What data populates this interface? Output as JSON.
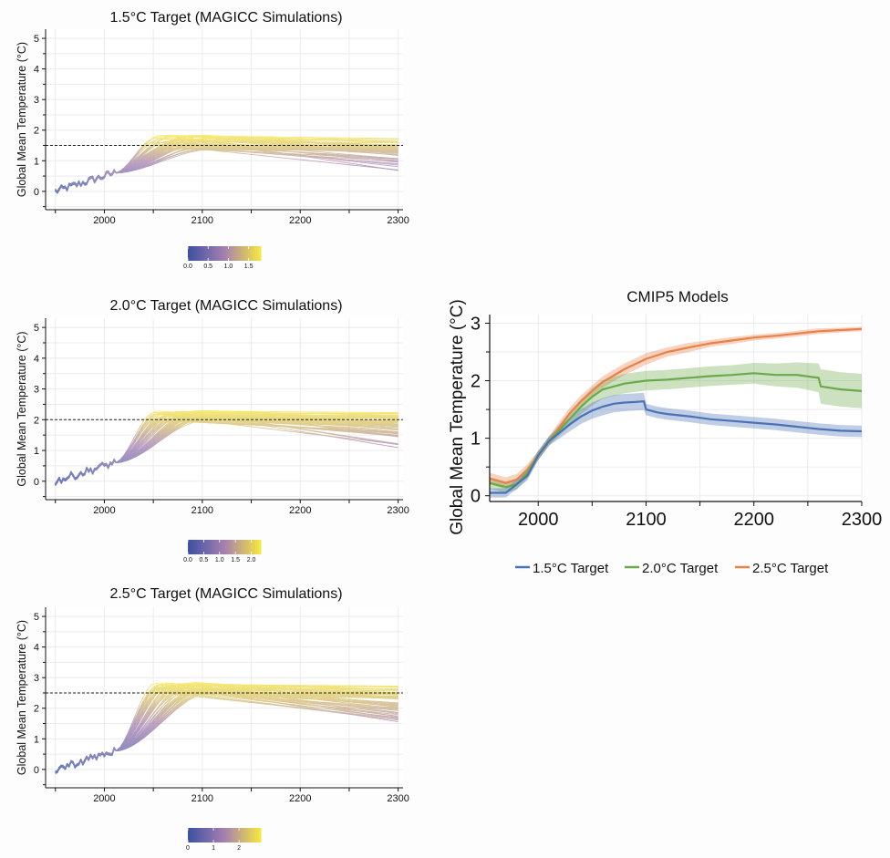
{
  "magicc_panels": [
    {
      "title": "1.5°C Target (MAGICC Simulations)",
      "ylabel": "Global Mean Temperature (°C)",
      "target": 1.5,
      "peak_range": [
        1.35,
        1.85
      ],
      "end_range": [
        0.6,
        1.75
      ],
      "colorbar_ticks": [
        "0.0",
        "0.5",
        "1.0",
        "1.5"
      ],
      "colorbar_max": 1.8
    },
    {
      "title": "2.0°C Target (MAGICC Simulations)",
      "ylabel": "Global Mean Temperature (°C)",
      "target": 2.0,
      "peak_range": [
        1.95,
        2.3
      ],
      "end_range": [
        1.05,
        2.25
      ],
      "colorbar_ticks": [
        "0.0",
        "0.5",
        "1.0",
        "1.5",
        "2.0"
      ],
      "colorbar_max": 2.3
    },
    {
      "title": "2.5°C Target (MAGICC Simulations)",
      "ylabel": "Global Mean Temperature (°C)",
      "target": 2.5,
      "peak_range": [
        2.45,
        2.85
      ],
      "end_range": [
        1.5,
        2.75
      ],
      "colorbar_ticks": [
        "0",
        "1",
        "2"
      ],
      "colorbar_max": 2.85
    }
  ],
  "colors": {
    "low": "#3d52a1",
    "mid": "#a57fb0",
    "high": "#f4e542",
    "blue": "#4a72b5",
    "green": "#6aaa4a",
    "orange": "#e8814a"
  },
  "chart_data": [
    {
      "type": "line",
      "title": "1.5°C Target (MAGICC Simulations)",
      "xlabel": "",
      "ylabel": "Global Mean Temperature (°C)",
      "x_ticks": [
        "2000",
        "2100",
        "2200",
        "2300"
      ],
      "y_ticks": [
        "0",
        "1",
        "2",
        "3",
        "4",
        "5"
      ],
      "xlim": [
        1940,
        2305
      ],
      "ylim": [
        -0.6,
        5.3
      ],
      "reference_line": 1.5,
      "series_description": "ensemble of ~60 simulations, colored by temperature"
    },
    {
      "type": "line",
      "title": "2.0°C Target (MAGICC Simulations)",
      "xlabel": "",
      "ylabel": "Global Mean Temperature (°C)",
      "x_ticks": [
        "2000",
        "2100",
        "2200",
        "2300"
      ],
      "y_ticks": [
        "0",
        "1",
        "2",
        "3",
        "4",
        "5"
      ],
      "xlim": [
        1940,
        2305
      ],
      "ylim": [
        -0.6,
        5.3
      ],
      "reference_line": 2.0
    },
    {
      "type": "line",
      "title": "2.5°C Target (MAGICC Simulations)",
      "xlabel": "",
      "ylabel": "Global Mean Temperature (°C)",
      "x_ticks": [
        "2000",
        "2100",
        "2200",
        "2300"
      ],
      "y_ticks": [
        "0",
        "1",
        "2",
        "3",
        "4",
        "5"
      ],
      "xlim": [
        1940,
        2305
      ],
      "ylim": [
        -0.6,
        5.3
      ],
      "reference_line": 2.5
    },
    {
      "type": "line",
      "title": "CMIP5 Models",
      "xlabel": "",
      "ylabel": "Global Mean Temperature (°C)",
      "x_ticks": [
        "2000",
        "2100",
        "2200",
        "2300"
      ],
      "y_ticks": [
        "0",
        "1",
        "2",
        "3"
      ],
      "xlim": [
        1955,
        2300
      ],
      "ylim": [
        -0.1,
        3.15
      ],
      "legend_position": "bottom",
      "series": [
        {
          "name": "1.5°C Target",
          "color": "#4a72b5",
          "x": [
            1955,
            1970,
            1980,
            1990,
            2000,
            2010,
            2020,
            2030,
            2040,
            2050,
            2060,
            2070,
            2080,
            2090,
            2098,
            2100,
            2110,
            2120,
            2140,
            2160,
            2180,
            2200,
            2220,
            2240,
            2260,
            2280,
            2300
          ],
          "y": [
            0.05,
            0.05,
            0.2,
            0.35,
            0.7,
            0.95,
            1.1,
            1.25,
            1.38,
            1.48,
            1.55,
            1.6,
            1.62,
            1.63,
            1.64,
            1.5,
            1.45,
            1.42,
            1.38,
            1.33,
            1.3,
            1.27,
            1.24,
            1.2,
            1.16,
            1.13,
            1.12
          ],
          "band": [
            0.08,
            0.08,
            0.08,
            0.08,
            0.08,
            0.08,
            0.1,
            0.12,
            0.13,
            0.14,
            0.15,
            0.15,
            0.15,
            0.15,
            0.15,
            0.1,
            0.1,
            0.1,
            0.1,
            0.1,
            0.1,
            0.1,
            0.1,
            0.1,
            0.1,
            0.1,
            0.1
          ]
        },
        {
          "name": "2.0°C Target",
          "color": "#6aaa4a",
          "x": [
            1955,
            1970,
            1980,
            1990,
            2000,
            2010,
            2020,
            2030,
            2040,
            2050,
            2060,
            2080,
            2100,
            2120,
            2140,
            2160,
            2180,
            2200,
            2220,
            2240,
            2260,
            2262,
            2280,
            2300
          ],
          "y": [
            0.22,
            0.15,
            0.2,
            0.4,
            0.7,
            0.95,
            1.15,
            1.35,
            1.55,
            1.72,
            1.85,
            1.95,
            2.0,
            2.02,
            2.05,
            2.08,
            2.1,
            2.13,
            2.1,
            2.1,
            2.05,
            1.9,
            1.85,
            1.82
          ],
          "band": [
            0.1,
            0.1,
            0.1,
            0.1,
            0.08,
            0.08,
            0.1,
            0.12,
            0.13,
            0.15,
            0.16,
            0.17,
            0.17,
            0.17,
            0.17,
            0.17,
            0.17,
            0.18,
            0.2,
            0.22,
            0.25,
            0.3,
            0.3,
            0.3
          ]
        },
        {
          "name": "2.5°C Target",
          "color": "#e8814a",
          "x": [
            1955,
            1970,
            1980,
            1990,
            2000,
            2010,
            2020,
            2030,
            2040,
            2050,
            2060,
            2080,
            2100,
            2120,
            2140,
            2160,
            2180,
            2200,
            2220,
            2240,
            2260,
            2280,
            2300
          ],
          "y": [
            0.3,
            0.22,
            0.28,
            0.45,
            0.7,
            0.95,
            1.2,
            1.45,
            1.65,
            1.82,
            1.98,
            2.2,
            2.38,
            2.5,
            2.58,
            2.65,
            2.7,
            2.75,
            2.78,
            2.82,
            2.86,
            2.88,
            2.9
          ],
          "band": [
            0.1,
            0.1,
            0.1,
            0.1,
            0.08,
            0.08,
            0.1,
            0.1,
            0.1,
            0.1,
            0.1,
            0.1,
            0.1,
            0.08,
            0.08,
            0.06,
            0.06,
            0.05,
            0.05,
            0.05,
            0.05,
            0.04,
            0.04
          ]
        }
      ]
    }
  ],
  "cmip_legend": [
    "1.5°C Target",
    "2.0°C Target",
    "2.5°C Target"
  ]
}
